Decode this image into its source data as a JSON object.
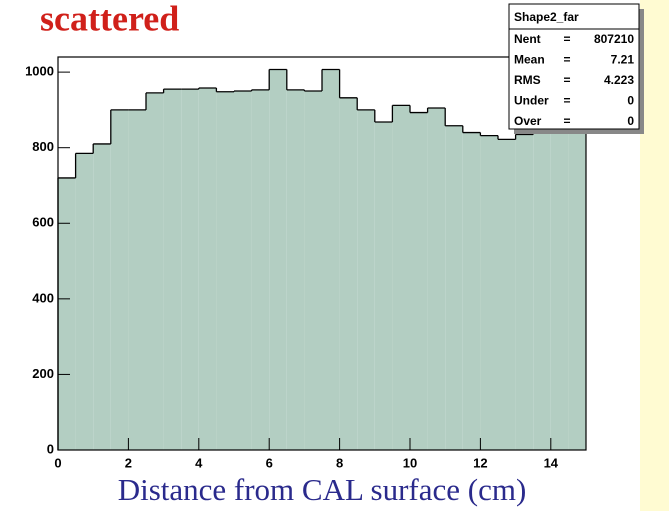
{
  "chart_data": {
    "type": "histogram",
    "title": "scattered",
    "x_label": "Distance from CAL surface (cm)",
    "bins": [
      0,
      0.5,
      1,
      1.5,
      2,
      2.5,
      3,
      3.5,
      4,
      4.5,
      5,
      5.5,
      6,
      6.5,
      7,
      7.5,
      8,
      8.5,
      9,
      9.5,
      10,
      10.5,
      11,
      11.5,
      12,
      12.5,
      13,
      13.5,
      14,
      14.5,
      15
    ],
    "values": [
      720,
      785,
      810,
      900,
      900,
      945,
      955,
      955,
      958,
      948,
      950,
      953,
      1007,
      953,
      950,
      1007,
      932,
      900,
      868,
      912,
      893,
      905,
      858,
      840,
      832,
      822,
      835,
      842,
      846,
      848
    ],
    "color": "#b3cec2",
    "xlim": [
      0,
      15
    ],
    "ylim": [
      0,
      1040
    ],
    "xticks": [
      0,
      2,
      4,
      6,
      8,
      10,
      12,
      14
    ],
    "yticks": [
      0,
      200,
      400,
      600,
      800,
      1000
    ],
    "stats": {
      "name": "Shape2_far",
      "rows": [
        {
          "label": "Nent",
          "eq": "=",
          "value": "807210"
        },
        {
          "label": "Mean",
          "eq": "=",
          "value": "7.21"
        },
        {
          "label": "RMS",
          "eq": "=",
          "value": "4.223"
        },
        {
          "label": "Under",
          "eq": "=",
          "value": "0"
        },
        {
          "label": "Over",
          "eq": "=",
          "value": "0"
        }
      ]
    }
  }
}
